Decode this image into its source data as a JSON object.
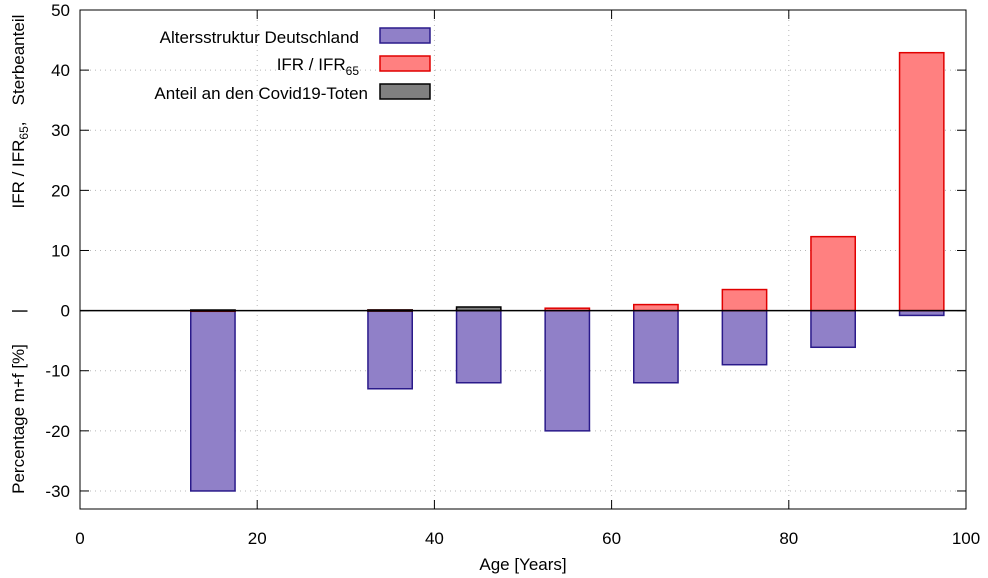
{
  "chart_data": {
    "type": "bar",
    "xlabel": "Age [Years]",
    "ylabel": {
      "line1": "Percentage m+f [%]",
      "sep": "|",
      "line2_pre": "IFR / IFR",
      "line2_sub": "65",
      "line2_post": ",",
      "line3": "Sterbeanteil"
    },
    "xlim": [
      0,
      100
    ],
    "ylim": [
      -33,
      50
    ],
    "xticks": [
      0,
      20,
      40,
      60,
      80,
      100
    ],
    "yticks": [
      -30,
      -20,
      -10,
      0,
      10,
      20,
      30,
      40,
      50
    ],
    "grid": true,
    "legend_position": "top-left",
    "series": [
      {
        "name": "Altersstruktur Deutschland",
        "color": "#9080c8",
        "edge": "#2a1a8a",
        "bars": [
          {
            "x": 15,
            "value": -30
          },
          {
            "x": 35,
            "value": -13
          },
          {
            "x": 45,
            "value": -12
          },
          {
            "x": 55,
            "value": -20
          },
          {
            "x": 65,
            "value": -12
          },
          {
            "x": 75,
            "value": -9
          },
          {
            "x": 85,
            "value": -6.1
          },
          {
            "x": 95,
            "value": -0.8
          }
        ]
      },
      {
        "name_pre": "IFR / IFR",
        "name_sub": "65",
        "color": "#ff8080",
        "edge": "#e00000",
        "bars": [
          {
            "x": 15,
            "value": 0.05
          },
          {
            "x": 35,
            "value": 0.1
          },
          {
            "x": 45,
            "value": 0.2
          },
          {
            "x": 55,
            "value": 0.4
          },
          {
            "x": 65,
            "value": 1.0
          },
          {
            "x": 75,
            "value": 3.5
          },
          {
            "x": 85,
            "value": 12.3
          },
          {
            "x": 95,
            "value": 42.9
          }
        ]
      },
      {
        "name": "Anteil an den Covid19-Toten",
        "color": "#808080",
        "edge": "#000000",
        "bars": [
          {
            "x": 15,
            "value": 0.1
          },
          {
            "x": 35,
            "value": 0.1
          },
          {
            "x": 45,
            "value": 0.6
          }
        ]
      }
    ]
  }
}
